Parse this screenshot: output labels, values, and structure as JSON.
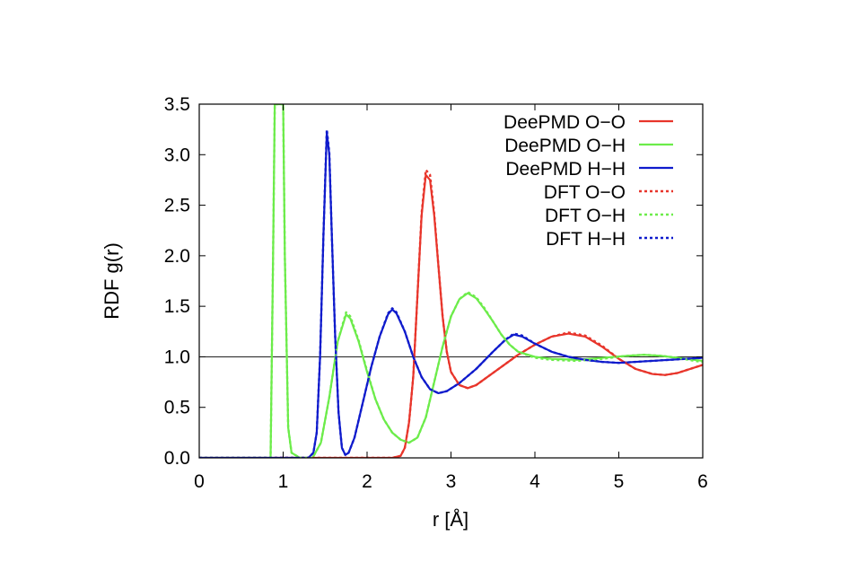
{
  "chart_data": {
    "type": "line",
    "xlabel": "r [Å]",
    "ylabel": "RDF g(r)",
    "xlim": [
      0,
      6
    ],
    "ylim": [
      0,
      3.5
    ],
    "xticks": [
      "0",
      "1",
      "2",
      "3",
      "4",
      "5",
      "6"
    ],
    "yticks": [
      "0.0",
      "0.5",
      "1.0",
      "1.5",
      "2.0",
      "2.5",
      "3.0",
      "3.5"
    ],
    "reference_line_y": 1.0,
    "grid": false,
    "legend_position": "top-right",
    "colors": {
      "O-O": "#e8352b",
      "O-H": "#6cec4a",
      "H-H": "#0f1bcc",
      "reference": "#000000"
    },
    "series": [
      {
        "name": "DeePMD O−O",
        "pair": "O-O",
        "style": "solid",
        "points": [
          [
            0,
            0
          ],
          [
            2.3,
            0
          ],
          [
            2.4,
            0.02
          ],
          [
            2.45,
            0.1
          ],
          [
            2.5,
            0.35
          ],
          [
            2.55,
            0.8
          ],
          [
            2.6,
            1.6
          ],
          [
            2.65,
            2.4
          ],
          [
            2.7,
            2.8
          ],
          [
            2.75,
            2.75
          ],
          [
            2.8,
            2.4
          ],
          [
            2.85,
            1.9
          ],
          [
            2.9,
            1.4
          ],
          [
            2.95,
            1.05
          ],
          [
            3.0,
            0.85
          ],
          [
            3.1,
            0.72
          ],
          [
            3.2,
            0.69
          ],
          [
            3.3,
            0.72
          ],
          [
            3.4,
            0.78
          ],
          [
            3.6,
            0.9
          ],
          [
            3.8,
            1.02
          ],
          [
            4.0,
            1.12
          ],
          [
            4.2,
            1.2
          ],
          [
            4.4,
            1.23
          ],
          [
            4.6,
            1.2
          ],
          [
            4.8,
            1.1
          ],
          [
            5.0,
            0.98
          ],
          [
            5.2,
            0.88
          ],
          [
            5.4,
            0.83
          ],
          [
            5.55,
            0.82
          ],
          [
            5.7,
            0.84
          ],
          [
            5.85,
            0.88
          ],
          [
            6.0,
            0.92
          ]
        ]
      },
      {
        "name": "DeePMD O−H",
        "pair": "O-H",
        "style": "solid",
        "points": [
          [
            0,
            0
          ],
          [
            0.85,
            0
          ],
          [
            0.88,
            2.0
          ],
          [
            0.9,
            3.5
          ],
          [
            1.0,
            3.5
          ],
          [
            1.02,
            2.0
          ],
          [
            1.06,
            0.3
          ],
          [
            1.1,
            0.05
          ],
          [
            1.2,
            0
          ],
          [
            1.35,
            0
          ],
          [
            1.45,
            0.15
          ],
          [
            1.55,
            0.6
          ],
          [
            1.65,
            1.15
          ],
          [
            1.75,
            1.42
          ],
          [
            1.8,
            1.38
          ],
          [
            1.9,
            1.15
          ],
          [
            2.0,
            0.85
          ],
          [
            2.1,
            0.58
          ],
          [
            2.2,
            0.38
          ],
          [
            2.3,
            0.25
          ],
          [
            2.4,
            0.18
          ],
          [
            2.5,
            0.15
          ],
          [
            2.6,
            0.2
          ],
          [
            2.7,
            0.4
          ],
          [
            2.8,
            0.75
          ],
          [
            2.9,
            1.1
          ],
          [
            3.0,
            1.4
          ],
          [
            3.1,
            1.57
          ],
          [
            3.2,
            1.63
          ],
          [
            3.3,
            1.58
          ],
          [
            3.4,
            1.47
          ],
          [
            3.5,
            1.35
          ],
          [
            3.6,
            1.22
          ],
          [
            3.7,
            1.12
          ],
          [
            3.8,
            1.05
          ],
          [
            4.0,
            1.0
          ],
          [
            4.2,
            0.98
          ],
          [
            4.5,
            0.97
          ],
          [
            4.8,
            0.99
          ],
          [
            5.1,
            1.01
          ],
          [
            5.3,
            1.02
          ],
          [
            5.5,
            1.01
          ],
          [
            5.7,
            0.99
          ],
          [
            5.9,
            0.97
          ],
          [
            6.0,
            0.96
          ]
        ]
      },
      {
        "name": "DeePMD H−H",
        "pair": "H-H",
        "style": "solid",
        "points": [
          [
            0,
            0
          ],
          [
            1.3,
            0
          ],
          [
            1.36,
            0.05
          ],
          [
            1.4,
            0.25
          ],
          [
            1.44,
            1.0
          ],
          [
            1.48,
            2.2
          ],
          [
            1.52,
            3.22
          ],
          [
            1.55,
            3.0
          ],
          [
            1.58,
            2.2
          ],
          [
            1.62,
            1.2
          ],
          [
            1.66,
            0.45
          ],
          [
            1.7,
            0.1
          ],
          [
            1.74,
            0.03
          ],
          [
            1.78,
            0.05
          ],
          [
            1.85,
            0.2
          ],
          [
            1.95,
            0.55
          ],
          [
            2.05,
            0.9
          ],
          [
            2.15,
            1.2
          ],
          [
            2.25,
            1.42
          ],
          [
            2.3,
            1.47
          ],
          [
            2.35,
            1.43
          ],
          [
            2.45,
            1.25
          ],
          [
            2.55,
            1.0
          ],
          [
            2.65,
            0.8
          ],
          [
            2.75,
            0.68
          ],
          [
            2.85,
            0.64
          ],
          [
            2.95,
            0.66
          ],
          [
            3.1,
            0.74
          ],
          [
            3.3,
            0.88
          ],
          [
            3.5,
            1.05
          ],
          [
            3.65,
            1.17
          ],
          [
            3.75,
            1.22
          ],
          [
            3.85,
            1.2
          ],
          [
            4.0,
            1.13
          ],
          [
            4.2,
            1.05
          ],
          [
            4.4,
            1.0
          ],
          [
            4.6,
            0.97
          ],
          [
            4.8,
            0.95
          ],
          [
            5.0,
            0.94
          ],
          [
            5.2,
            0.95
          ],
          [
            5.4,
            0.96
          ],
          [
            5.6,
            0.97
          ],
          [
            5.8,
            0.98
          ],
          [
            6.0,
            0.99
          ]
        ]
      },
      {
        "name": "DFT O−O",
        "pair": "O-O",
        "style": "dotted",
        "points": [
          [
            0,
            0
          ],
          [
            2.3,
            0
          ],
          [
            2.4,
            0.02
          ],
          [
            2.45,
            0.1
          ],
          [
            2.5,
            0.35
          ],
          [
            2.55,
            0.8
          ],
          [
            2.6,
            1.6
          ],
          [
            2.65,
            2.42
          ],
          [
            2.7,
            2.85
          ],
          [
            2.75,
            2.8
          ],
          [
            2.8,
            2.42
          ],
          [
            2.85,
            1.9
          ],
          [
            2.9,
            1.4
          ],
          [
            2.95,
            1.05
          ],
          [
            3.0,
            0.85
          ],
          [
            3.1,
            0.72
          ],
          [
            3.2,
            0.69
          ],
          [
            3.3,
            0.72
          ],
          [
            3.4,
            0.78
          ],
          [
            3.6,
            0.9
          ],
          [
            3.8,
            1.02
          ],
          [
            4.0,
            1.12
          ],
          [
            4.2,
            1.2
          ],
          [
            4.4,
            1.24
          ],
          [
            4.6,
            1.21
          ],
          [
            4.8,
            1.11
          ],
          [
            5.0,
            0.98
          ],
          [
            5.2,
            0.88
          ],
          [
            5.4,
            0.83
          ],
          [
            5.55,
            0.82
          ],
          [
            5.7,
            0.84
          ],
          [
            5.85,
            0.88
          ],
          [
            6.0,
            0.92
          ]
        ]
      },
      {
        "name": "DFT O−H",
        "pair": "O-H",
        "style": "dotted",
        "points": [
          [
            0,
            0
          ],
          [
            0.85,
            0
          ],
          [
            0.88,
            2.0
          ],
          [
            0.9,
            3.5
          ],
          [
            1.0,
            3.5
          ],
          [
            1.02,
            2.0
          ],
          [
            1.06,
            0.3
          ],
          [
            1.1,
            0.05
          ],
          [
            1.2,
            0
          ],
          [
            1.35,
            0
          ],
          [
            1.45,
            0.15
          ],
          [
            1.55,
            0.6
          ],
          [
            1.65,
            1.15
          ],
          [
            1.75,
            1.44
          ],
          [
            1.8,
            1.4
          ],
          [
            1.9,
            1.16
          ],
          [
            2.0,
            0.86
          ],
          [
            2.1,
            0.58
          ],
          [
            2.2,
            0.38
          ],
          [
            2.3,
            0.25
          ],
          [
            2.4,
            0.18
          ],
          [
            2.5,
            0.15
          ],
          [
            2.6,
            0.2
          ],
          [
            2.7,
            0.4
          ],
          [
            2.8,
            0.75
          ],
          [
            2.9,
            1.1
          ],
          [
            3.0,
            1.4
          ],
          [
            3.1,
            1.57
          ],
          [
            3.2,
            1.64
          ],
          [
            3.3,
            1.59
          ],
          [
            3.4,
            1.48
          ],
          [
            3.5,
            1.35
          ],
          [
            3.6,
            1.22
          ],
          [
            3.7,
            1.12
          ],
          [
            3.8,
            1.05
          ],
          [
            4.0,
            0.99
          ],
          [
            4.2,
            0.97
          ],
          [
            4.5,
            0.96
          ],
          [
            4.8,
            0.98
          ],
          [
            5.1,
            1.01
          ],
          [
            5.3,
            1.02
          ],
          [
            5.5,
            1.01
          ],
          [
            5.7,
            0.99
          ],
          [
            5.9,
            0.96
          ],
          [
            6.0,
            0.95
          ]
        ]
      },
      {
        "name": "DFT H−H",
        "pair": "H-H",
        "style": "dotted",
        "points": [
          [
            0,
            0
          ],
          [
            1.3,
            0
          ],
          [
            1.36,
            0.05
          ],
          [
            1.4,
            0.25
          ],
          [
            1.44,
            1.0
          ],
          [
            1.48,
            2.2
          ],
          [
            1.52,
            3.25
          ],
          [
            1.55,
            3.02
          ],
          [
            1.58,
            2.2
          ],
          [
            1.62,
            1.2
          ],
          [
            1.66,
            0.45
          ],
          [
            1.7,
            0.1
          ],
          [
            1.74,
            0.03
          ],
          [
            1.78,
            0.05
          ],
          [
            1.85,
            0.2
          ],
          [
            1.95,
            0.55
          ],
          [
            2.05,
            0.9
          ],
          [
            2.15,
            1.2
          ],
          [
            2.25,
            1.43
          ],
          [
            2.3,
            1.48
          ],
          [
            2.35,
            1.44
          ],
          [
            2.45,
            1.25
          ],
          [
            2.55,
            1.0
          ],
          [
            2.65,
            0.8
          ],
          [
            2.75,
            0.68
          ],
          [
            2.85,
            0.64
          ],
          [
            2.95,
            0.66
          ],
          [
            3.1,
            0.74
          ],
          [
            3.3,
            0.88
          ],
          [
            3.5,
            1.05
          ],
          [
            3.65,
            1.17
          ],
          [
            3.75,
            1.23
          ],
          [
            3.85,
            1.21
          ],
          [
            4.0,
            1.13
          ],
          [
            4.2,
            1.05
          ],
          [
            4.4,
            1.0
          ],
          [
            4.6,
            0.97
          ],
          [
            4.8,
            0.95
          ],
          [
            5.0,
            0.94
          ],
          [
            5.2,
            0.95
          ],
          [
            5.4,
            0.96
          ],
          [
            5.6,
            0.97
          ],
          [
            5.8,
            0.98
          ],
          [
            6.0,
            0.99
          ]
        ]
      }
    ]
  }
}
